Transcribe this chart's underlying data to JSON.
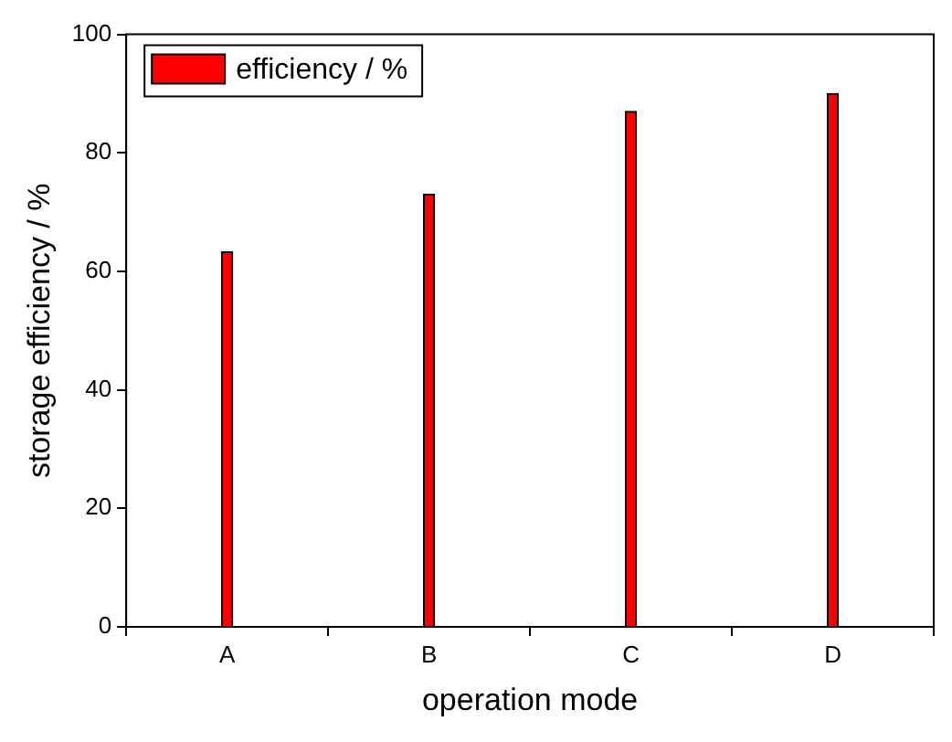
{
  "chart_data": {
    "type": "bar",
    "xlabel": "operation mode",
    "ylabel": "storage efficiency / %",
    "categories": [
      "A",
      "B",
      "C",
      "D"
    ],
    "series": [
      {
        "name": "efficiency / %",
        "color": "#ff0000",
        "values": [
          63.3,
          73,
          87,
          90
        ]
      }
    ],
    "ylim": [
      0,
      100
    ],
    "yticks": [
      0,
      20,
      40,
      60,
      80,
      100
    ],
    "grid": false,
    "legend": "top left"
  }
}
